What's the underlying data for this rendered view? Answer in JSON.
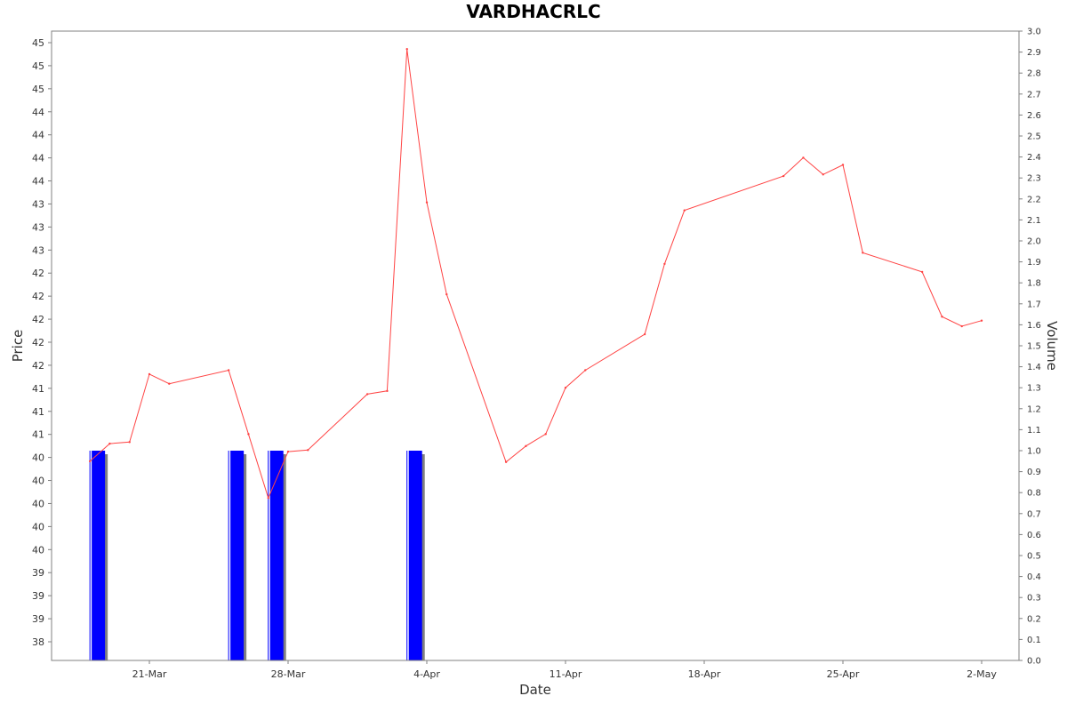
{
  "chart_data": {
    "type": "line",
    "title": "VARDHACRLC",
    "xlabel": "Date",
    "ylabel": "Price",
    "y2label": "Volume",
    "grid": false,
    "legend": "none",
    "x_ticks": [
      "21-Mar",
      "28-Mar",
      "4-Apr",
      "11-Apr",
      "18-Apr",
      "25-Apr",
      "2-May"
    ],
    "y_ticks": [
      "45",
      "45",
      "45",
      "44",
      "44",
      "44",
      "44",
      "43",
      "43",
      "43",
      "42",
      "42",
      "42",
      "42",
      "42",
      "41",
      "41",
      "41",
      "40",
      "40",
      "40",
      "40",
      "40",
      "39",
      "39",
      "39",
      "38"
    ],
    "y2_ticks": [
      "3.0",
      "2.9",
      "2.8",
      "2.7",
      "2.6",
      "2.5",
      "2.4",
      "2.3",
      "2.2",
      "2.1",
      "2.0",
      "1.9",
      "1.8",
      "1.7",
      "1.6",
      "1.5",
      "1.4",
      "1.3",
      "1.2",
      "1.1",
      "1.0",
      "0.9",
      "0.8",
      "0.7",
      "0.6",
      "0.5",
      "0.4",
      "0.3",
      "0.2",
      "0.1",
      "0.0"
    ],
    "ylim": [
      37.8,
      45.3
    ],
    "y2lim": [
      0,
      3.0
    ],
    "colors": {
      "price": "#ff4444",
      "volume": "#0000ff",
      "volume_shadow": "#808080"
    },
    "price_series": {
      "name": "",
      "x": [
        "2024-03-18",
        "2024-03-19",
        "2024-03-20",
        "2024-03-21",
        "2024-03-22",
        "2024-03-25",
        "2024-03-26",
        "2024-03-27",
        "2024-03-28",
        "2024-03-29",
        "2024-04-01",
        "2024-04-02",
        "2024-04-03",
        "2024-04-04",
        "2024-04-05",
        "2024-04-08",
        "2024-04-09",
        "2024-04-10",
        "2024-04-11",
        "2024-04-12",
        "2024-04-15",
        "2024-04-16",
        "2024-04-17",
        "2024-04-22",
        "2024-04-23",
        "2024-04-24",
        "2024-04-25",
        "2024-04-26",
        "2024-04-29",
        "2024-04-30",
        "2024-05-01",
        "2024-05-02"
      ],
      "values": [
        40.06,
        40.28,
        40.3,
        41.15,
        41.03,
        41.2,
        40.4,
        39.6,
        40.18,
        40.2,
        40.9,
        40.94,
        45.22,
        43.3,
        42.15,
        40.05,
        40.25,
        40.4,
        40.98,
        41.2,
        41.65,
        42.53,
        43.2,
        43.63,
        43.86,
        43.65,
        43.77,
        42.67,
        42.43,
        41.87,
        41.75,
        41.82
      ]
    },
    "volume_series": {
      "name": "",
      "x": [
        "2024-03-18",
        "2024-03-25",
        "2024-03-27",
        "2024-04-03"
      ],
      "values": [
        1.0,
        1.0,
        1.0,
        1.0
      ]
    }
  }
}
